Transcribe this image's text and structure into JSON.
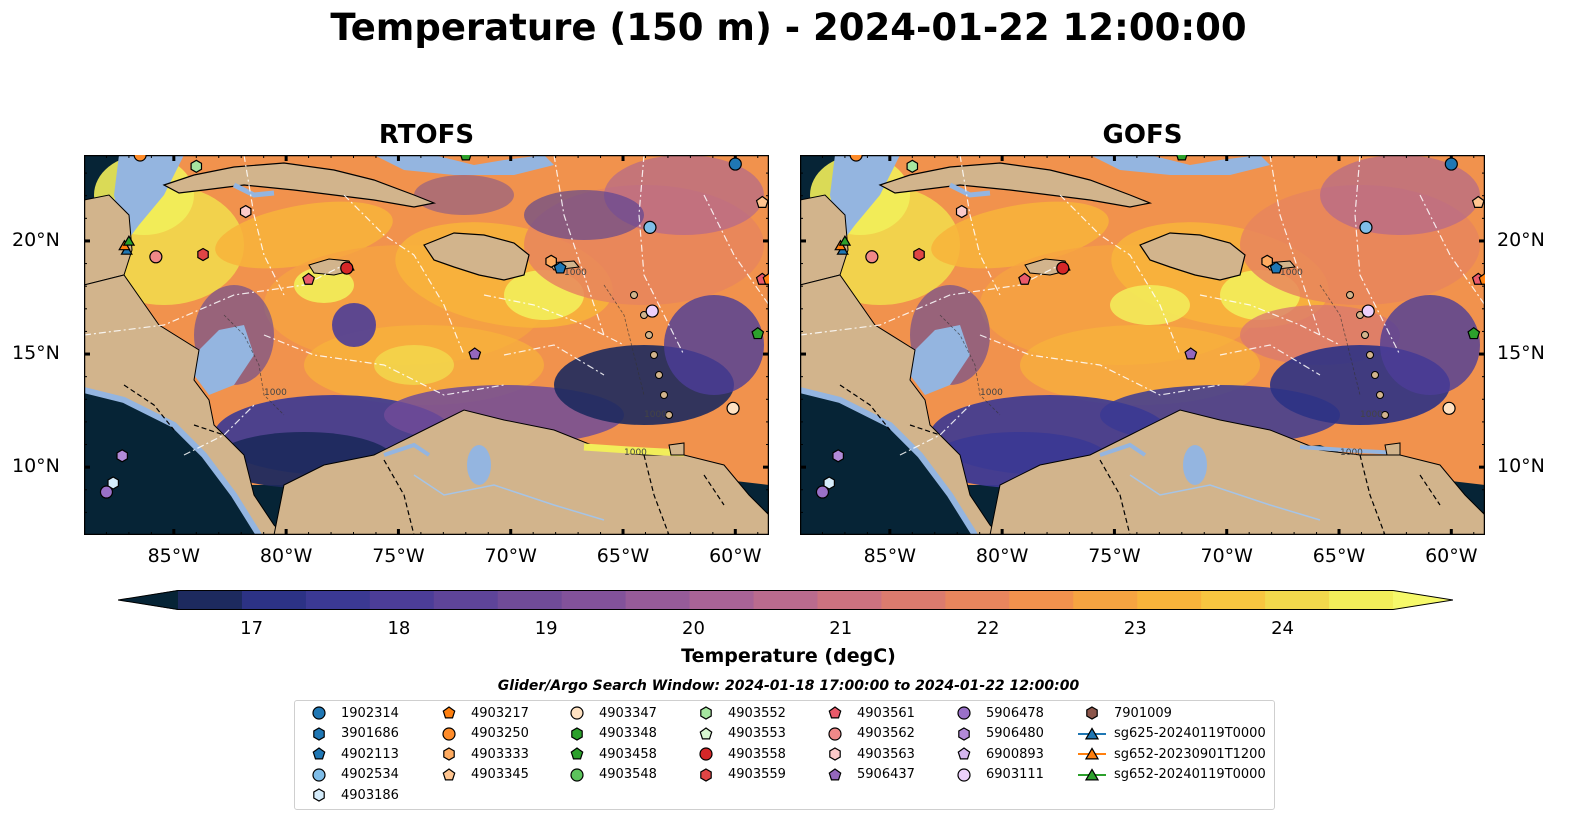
{
  "title": "Temperature (150 m) - 2024-01-22 12:00:00",
  "panels": [
    {
      "title": "RTOFS"
    },
    {
      "title": "GOFS"
    }
  ],
  "axes": {
    "lon_ticks": [
      "85°W",
      "80°W",
      "75°W",
      "70°W",
      "65°W",
      "60°W"
    ],
    "lat_ticks": [
      "20°N",
      "15°N",
      "10°N"
    ]
  },
  "colorbar": {
    "label": "Temperature (degC)",
    "ticks": [
      "17",
      "18",
      "19",
      "20",
      "21",
      "22",
      "23",
      "24"
    ],
    "range": [
      16.5,
      24.75
    ],
    "colors": [
      "#062436",
      "#1d2a5e",
      "#2c3285",
      "#3b3993",
      "#4c3d98",
      "#5e4499",
      "#704b98",
      "#82529a",
      "#965b99",
      "#a86396",
      "#ba6b8e",
      "#cc7280",
      "#db7b6e",
      "#e8855d",
      "#f1924d",
      "#f6a441",
      "#f8b43b",
      "#f7c640",
      "#f2d94c",
      "#f2ee5a",
      "#f6f96a"
    ]
  },
  "contour_labels": [
    "1000",
    "1000",
    "1000",
    "1000"
  ],
  "search_window": "Glider/Argo Search Window: 2024-01-18 17:00:00 to 2024-01-22 12:00:00",
  "legend": [
    {
      "label": "1902314",
      "marker": "circle",
      "color": "#1f77b4"
    },
    {
      "label": "3901686",
      "marker": "hexagon",
      "color": "#1f77b4"
    },
    {
      "label": "4902113",
      "marker": "pentagon",
      "color": "#1f77b4"
    },
    {
      "label": "4902534",
      "marker": "circle",
      "color": "#7fbde8"
    },
    {
      "label": "4903186",
      "marker": "hexagon",
      "color": "#d5ecfb"
    },
    {
      "label": "4903217",
      "marker": "pentagon",
      "color": "#ff7f0e"
    },
    {
      "label": "4903250",
      "marker": "circle",
      "color": "#ff8c2a"
    },
    {
      "label": "4903333",
      "marker": "hexagon",
      "color": "#ffab60"
    },
    {
      "label": "4903345",
      "marker": "pentagon",
      "color": "#ffc590"
    },
    {
      "label": "4903347",
      "marker": "circle",
      "color": "#ffe2c2"
    },
    {
      "label": "4903348",
      "marker": "hexagon",
      "color": "#2ca02c"
    },
    {
      "label": "4903458",
      "marker": "pentagon",
      "color": "#2ca02c"
    },
    {
      "label": "4903548",
      "marker": "circle",
      "color": "#5cc35c"
    },
    {
      "label": "4903552",
      "marker": "hexagon",
      "color": "#a6e6a0"
    },
    {
      "label": "4903553",
      "marker": "pentagon",
      "color": "#d8f7d0"
    },
    {
      "label": "4903558",
      "marker": "circle",
      "color": "#d62728"
    },
    {
      "label": "4903559",
      "marker": "hexagon",
      "color": "#e04545"
    },
    {
      "label": "4903561",
      "marker": "pentagon",
      "color": "#ea5a6a"
    },
    {
      "label": "4903562",
      "marker": "circle",
      "color": "#f08888"
    },
    {
      "label": "4903563",
      "marker": "hexagon",
      "color": "#fbcaca"
    },
    {
      "label": "5906437",
      "marker": "pentagon",
      "color": "#9467bd"
    },
    {
      "label": "5906478",
      "marker": "circle",
      "color": "#9a70c8"
    },
    {
      "label": "5906480",
      "marker": "hexagon",
      "color": "#b28ad8"
    },
    {
      "label": "6900893",
      "marker": "pentagon",
      "color": "#d4b6ee"
    },
    {
      "label": "6903111",
      "marker": "circle",
      "color": "#ecd0fb"
    },
    {
      "label": "7901009",
      "marker": "hexagon",
      "color": "#8c564b"
    },
    {
      "label": "sg625-20240119T0000",
      "marker": "triangle-line",
      "color": "#1f77b4"
    },
    {
      "label": "sg652-20230901T1200",
      "marker": "triangle-line",
      "color": "#ff7f0e"
    },
    {
      "label": "sg652-20240119T0000",
      "marker": "triangle-line",
      "color": "#2ca02c"
    }
  ]
}
